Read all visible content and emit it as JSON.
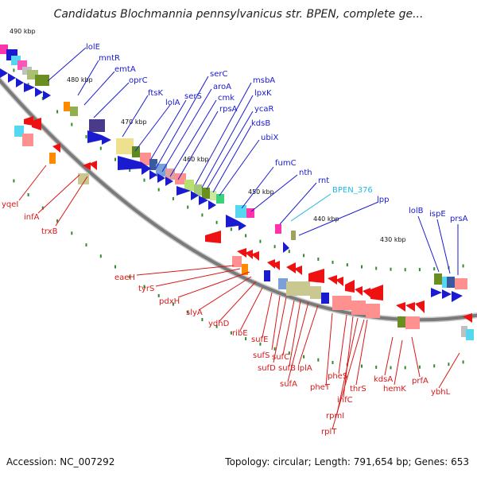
{
  "title": "Candidatus Blochmannia pennsylvanicus str. BPEN, complete ge...",
  "accession": "Accession: NC_007292",
  "summary": "Topology: circular; Length: 791,654 bp; Genes: 653",
  "colors": {
    "forward_label": "#1a1ad0",
    "reverse_label": "#d81818",
    "highlight_label": "#22b8e0",
    "backbone": "#7a7a7a",
    "tick": "#2e8b2e"
  },
  "scale_labels": [
    {
      "id": "kbp-490",
      "text": "490 kbp"
    },
    {
      "id": "kbp-480",
      "text": "480 kbp"
    },
    {
      "id": "kbp-470",
      "text": "470 kbp"
    },
    {
      "id": "kbp-460",
      "text": "460 kbp"
    },
    {
      "id": "kbp-450",
      "text": "450 kbp"
    },
    {
      "id": "kbp-440",
      "text": "440 kbp"
    },
    {
      "id": "kbp-430",
      "text": "430 kbp"
    }
  ],
  "forward_genes": [
    {
      "id": "lolE",
      "text": "lolE"
    },
    {
      "id": "mntR",
      "text": "mntR"
    },
    {
      "id": "emtA",
      "text": "emtA"
    },
    {
      "id": "oprC",
      "text": "oprC"
    },
    {
      "id": "ftsK",
      "text": "ftsK"
    },
    {
      "id": "lolA",
      "text": "lolA"
    },
    {
      "id": "serS",
      "text": "serS"
    },
    {
      "id": "serC",
      "text": "serC"
    },
    {
      "id": "aroA",
      "text": "aroA"
    },
    {
      "id": "cmk",
      "text": "cmk"
    },
    {
      "id": "rpsA",
      "text": "rpsA"
    },
    {
      "id": "msbA",
      "text": "msbA"
    },
    {
      "id": "lpxK",
      "text": "lpxK"
    },
    {
      "id": "ycaR",
      "text": "ycaR"
    },
    {
      "id": "kdsB",
      "text": "kdsB"
    },
    {
      "id": "ubiX",
      "text": "ubiX"
    },
    {
      "id": "fumC",
      "text": "fumC"
    },
    {
      "id": "nth",
      "text": "nth"
    },
    {
      "id": "rnt",
      "text": "rnt"
    },
    {
      "id": "BPEN_376",
      "text": "BPEN_376"
    },
    {
      "id": "lpp",
      "text": "lpp"
    },
    {
      "id": "lolB",
      "text": "lolB"
    },
    {
      "id": "ispE",
      "text": "ispE"
    },
    {
      "id": "prsA",
      "text": "prsA"
    }
  ],
  "reverse_genes": [
    {
      "id": "yqeI",
      "text": "yqeI"
    },
    {
      "id": "infA",
      "text": "infA"
    },
    {
      "id": "trxB",
      "text": "trxB"
    },
    {
      "id": "eaeH",
      "text": "eaeH"
    },
    {
      "id": "tyrS",
      "text": "tyrS"
    },
    {
      "id": "pdxH",
      "text": "pdxH"
    },
    {
      "id": "slyA",
      "text": "slyA"
    },
    {
      "id": "ydhD",
      "text": "ydhD"
    },
    {
      "id": "ribE",
      "text": "ribE"
    },
    {
      "id": "sufE",
      "text": "sufE"
    },
    {
      "id": "sufS",
      "text": "sufS"
    },
    {
      "id": "sufD",
      "text": "sufD"
    },
    {
      "id": "sufC",
      "text": "sufC"
    },
    {
      "id": "sufB",
      "text": "sufB"
    },
    {
      "id": "sufA",
      "text": "sufA"
    },
    {
      "id": "lplA",
      "text": "lplA"
    },
    {
      "id": "pheT",
      "text": "pheT"
    },
    {
      "id": "pheS",
      "text": "pheS"
    },
    {
      "id": "infC",
      "text": "infC"
    },
    {
      "id": "rpmI",
      "text": "rpmI"
    },
    {
      "id": "rplT",
      "text": "rplT"
    },
    {
      "id": "thrS",
      "text": "thrS"
    },
    {
      "id": "kdsA",
      "text": "kdsA"
    },
    {
      "id": "hemK",
      "text": "hemK"
    },
    {
      "id": "prfA",
      "text": "prfA"
    },
    {
      "id": "ybhL",
      "text": "ybhL"
    }
  ]
}
